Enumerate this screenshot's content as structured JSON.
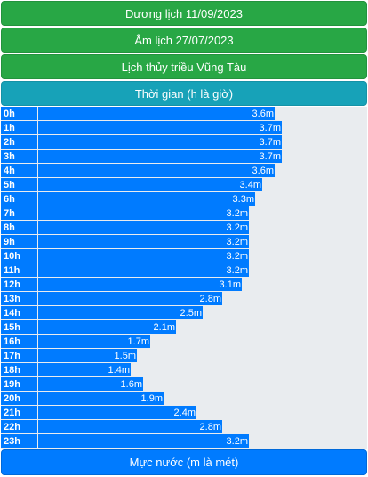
{
  "header": {
    "solar_date": "Dương lịch 11/09/2023",
    "lunar_date": "Âm lịch 27/07/2023",
    "tide_title": "Lịch thủy triều Vũng Tàu",
    "time_label": "Thời gian (h là giờ)"
  },
  "footer": {
    "level_label": "Mực nước (m là mét)"
  },
  "colors": {
    "green": "#28a745",
    "teal": "#17a2b8",
    "blue": "#007bff",
    "track": "#e9ecef"
  },
  "chart_data": {
    "type": "bar",
    "orientation": "horizontal",
    "unit": "m",
    "categories": [
      "0h",
      "1h",
      "2h",
      "3h",
      "4h",
      "5h",
      "6h",
      "7h",
      "8h",
      "9h",
      "10h",
      "11h",
      "12h",
      "13h",
      "14h",
      "15h",
      "16h",
      "17h",
      "18h",
      "19h",
      "20h",
      "21h",
      "22h",
      "23h"
    ],
    "values": [
      3.6,
      3.7,
      3.7,
      3.7,
      3.6,
      3.4,
      3.3,
      3.2,
      3.2,
      3.2,
      3.2,
      3.2,
      3.1,
      2.8,
      2.5,
      2.1,
      1.7,
      1.5,
      1.4,
      1.6,
      1.9,
      2.4,
      2.8,
      3.2
    ],
    "labels": [
      "3.6m",
      "3.7m",
      "3.7m",
      "3.7m",
      "3.6m",
      "3.4m",
      "3.3m",
      "3.2m",
      "3.2m",
      "3.2m",
      "3.2m",
      "3.2m",
      "3.1m",
      "2.8m",
      "2.5m",
      "2.1m",
      "1.7m",
      "1.5m",
      "1.4m",
      "1.6m",
      "1.9m",
      "2.4m",
      "2.8m",
      "3.2m"
    ],
    "xlim": [
      0,
      5
    ]
  }
}
